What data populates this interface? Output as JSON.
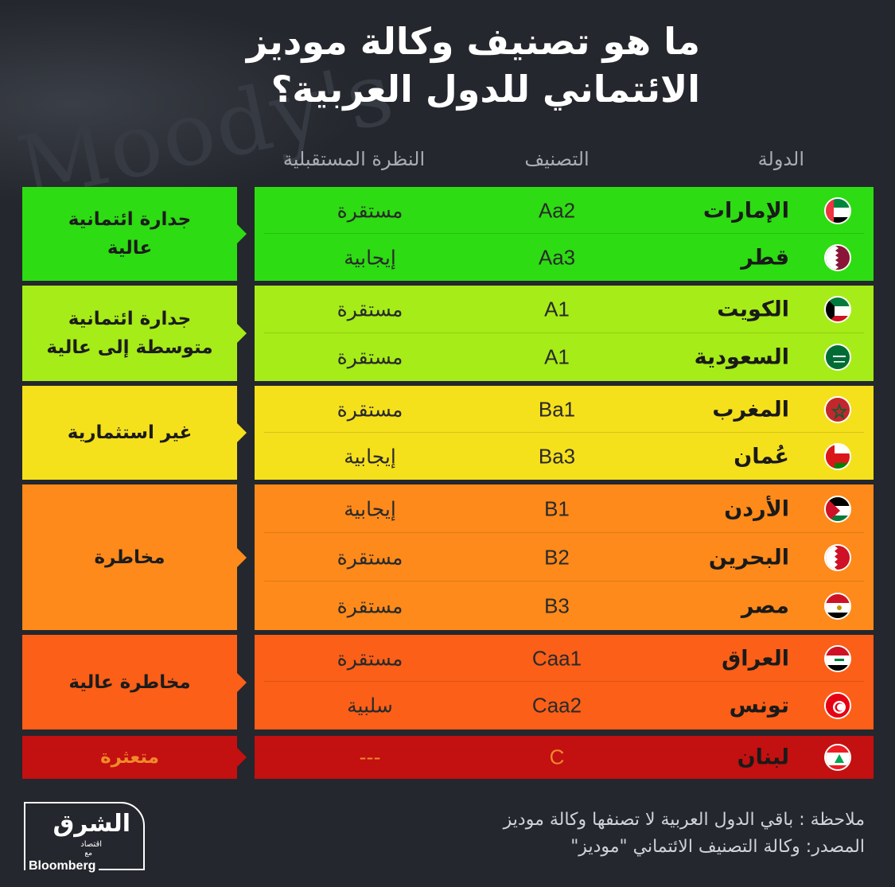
{
  "title": {
    "line1": "ما هو تصنيف وكالة موديز",
    "line2": "الائتماني للدول العربية؟"
  },
  "watermark": "Moody's",
  "headers": {
    "country": "الدولة",
    "rating": "التصنيف",
    "outlook": "النظرة المستقبلية"
  },
  "categories": [
    {
      "label": "جدارة ائتمانية عالية",
      "color": "#2ddc12"
    },
    {
      "label": "جدارة ائتمانية متوسطة إلى عالية",
      "color": "#a6ec18"
    },
    {
      "label": "غير استثمارية",
      "color": "#f5e01c"
    },
    {
      "label": "مخاطرة",
      "color": "#fd8a1a"
    },
    {
      "label": "مخاطرة عالية",
      "color": "#fb5f18"
    },
    {
      "label": "متعثرة",
      "color": "#c31010"
    }
  ],
  "rows": [
    {
      "country": "الإمارات",
      "rating": "Aa2",
      "outlook": "مستقرة",
      "flag": "uae-flag-icon"
    },
    {
      "country": "قطر",
      "rating": "Aa3",
      "outlook": "إيجابية",
      "flag": "qatar-flag-icon"
    },
    {
      "country": "الكويت",
      "rating": "A1",
      "outlook": "مستقرة",
      "flag": "kuwait-flag-icon"
    },
    {
      "country": "السعودية",
      "rating": "A1",
      "outlook": "مستقرة",
      "flag": "saudi-flag-icon"
    },
    {
      "country": "المغرب",
      "rating": "Ba1",
      "outlook": "مستقرة",
      "flag": "morocco-flag-icon"
    },
    {
      "country": "عُمان",
      "rating": "Ba3",
      "outlook": "إيجابية",
      "flag": "oman-flag-icon"
    },
    {
      "country": "الأردن",
      "rating": "B1",
      "outlook": "إيجابية",
      "flag": "jordan-flag-icon"
    },
    {
      "country": "البحرين",
      "rating": "B2",
      "outlook": "مستقرة",
      "flag": "bahrain-flag-icon"
    },
    {
      "country": "مصر",
      "rating": "B3",
      "outlook": "مستقرة",
      "flag": "egypt-flag-icon"
    },
    {
      "country": "العراق",
      "rating": "Caa1",
      "outlook": "مستقرة",
      "flag": "iraq-flag-icon"
    },
    {
      "country": "تونس",
      "rating": "Caa2",
      "outlook": "سلبية",
      "flag": "tunisia-flag-icon"
    },
    {
      "country": "لبنان",
      "rating": "C",
      "outlook": "---",
      "flag": "lebanon-flag-icon"
    }
  ],
  "footer": {
    "note": "ملاحظة : باقي الدول العربية  لا تصنفها وكالة موديز",
    "source": "المصدر: وكالة التصنيف الائتماني \"موديز\""
  },
  "logo": {
    "name": "الشرق",
    "sub": "اقتصاد",
    "with": "مع",
    "partner": "Bloomberg"
  }
}
